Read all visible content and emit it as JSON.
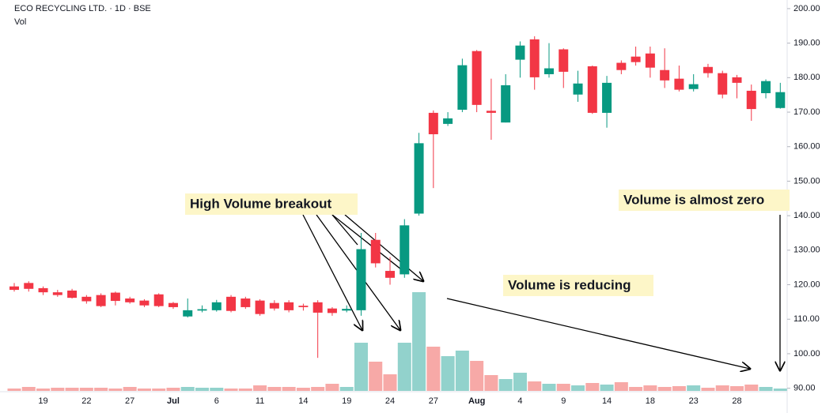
{
  "chart_data": {
    "type": "candlestick",
    "title": "ECO RECYCLING LTD. · 1D · BSE",
    "subtitle": "Vol",
    "categories": [
      null,
      null,
      "19",
      null,
      null,
      "22",
      null,
      null,
      "27",
      null,
      null,
      "Jul",
      null,
      null,
      "6",
      null,
      null,
      "11",
      null,
      null,
      "14",
      null,
      null,
      "19",
      null,
      null,
      "24",
      null,
      null,
      "27",
      null,
      null,
      "Aug",
      null,
      null,
      "4",
      null,
      null,
      "9",
      null,
      null,
      "14",
      null,
      null,
      "18",
      null,
      null,
      "23",
      null,
      null,
      "28",
      null,
      null,
      null
    ],
    "open": [
      119.5,
      120.5,
      119,
      117.8,
      118.3,
      116.5,
      117,
      117.7,
      116,
      115.4,
      117.2,
      114.7,
      110.8,
      112.5,
      112.6,
      116.5,
      116,
      115.4,
      114.7,
      114.9,
      113.9,
      114.9,
      113.1,
      112.5,
      112.6,
      133,
      124,
      123,
      140.6,
      169.8,
      166.6,
      170.7,
      187.7,
      170.4,
      167,
      185.2,
      191.1,
      181,
      188.2,
      175.1,
      183.3,
      169.8,
      184.3,
      186.1,
      187,
      182.2,
      179.7,
      176.7,
      183.1,
      181.3,
      180.1,
      176.2,
      175.5,
      171.2
    ],
    "high": [
      120.5,
      121,
      119.5,
      118.5,
      118.8,
      117,
      117.5,
      118,
      116.5,
      115.8,
      117.5,
      115,
      116,
      114,
      115.6,
      117,
      116.5,
      115.8,
      115.5,
      115.5,
      114.5,
      115.5,
      113.5,
      114,
      135,
      135,
      128,
      139,
      164,
      170.5,
      170,
      185.5,
      188,
      179.7,
      181,
      190.5,
      192,
      190,
      188.5,
      182,
      183.5,
      180.5,
      185,
      189,
      189,
      188.5,
      183.5,
      181,
      184,
      182,
      180.8,
      178,
      179.5,
      178.5
    ],
    "low": [
      118,
      118,
      117,
      116.5,
      116,
      114.5,
      113.5,
      114,
      114.5,
      113.5,
      113.5,
      113,
      110.5,
      112,
      112.2,
      112,
      113,
      111,
      112.5,
      112,
      112.5,
      98.8,
      111,
      112,
      111,
      125,
      120,
      122,
      140,
      148,
      166,
      170,
      170,
      162,
      167,
      180,
      176.5,
      180,
      177,
      173,
      169.5,
      165.5,
      181,
      183.5,
      180,
      177,
      176,
      176,
      180,
      174,
      174,
      167.5,
      174,
      171
    ],
    "close": [
      118.5,
      118.8,
      117.8,
      117,
      116.2,
      115.2,
      113.8,
      115.3,
      114.9,
      114,
      113.8,
      113.5,
      112.6,
      112.9,
      114.9,
      112.4,
      113.5,
      111.5,
      113.1,
      112.6,
      113.5,
      111.9,
      111.8,
      113,
      130.3,
      126.2,
      122,
      137.2,
      161,
      163.6,
      168.2,
      183.6,
      172.1,
      169.8,
      177.8,
      189.3,
      180.1,
      182.7,
      181.7,
      178.3,
      169.8,
      178.5,
      182.2,
      184.5,
      182.9,
      179.2,
      176.5,
      178.1,
      181.3,
      175.1,
      178.5,
      170.9,
      179,
      175.8
    ],
    "volume": [
      3,
      5,
      3,
      4,
      4,
      4,
      4,
      3,
      5,
      3,
      3,
      4,
      5,
      4,
      4,
      3,
      3,
      7,
      5,
      5,
      4,
      5,
      9,
      5,
      61,
      37,
      21,
      61,
      125,
      56,
      44,
      51,
      38,
      20,
      15,
      23,
      12,
      9,
      9,
      7,
      10,
      8,
      11,
      5,
      7,
      5,
      6,
      7,
      4,
      7,
      6,
      8,
      5,
      3
    ],
    "up_color": "#089981",
    "down_color": "#f23645",
    "volume_up_color": "#92d2cc",
    "volume_down_color": "#f7a9a7",
    "ylim": [
      89,
      202.5
    ],
    "yticks": [
      {
        "value": 90,
        "label": "90.00"
      },
      {
        "value": 100,
        "label": "100.00"
      },
      {
        "value": 110,
        "label": "110.00"
      },
      {
        "value": 120,
        "label": "120.00"
      },
      {
        "value": 130,
        "label": "130.00"
      },
      {
        "value": 140,
        "label": "140.00"
      },
      {
        "value": 150,
        "label": "150.00"
      },
      {
        "value": 160,
        "label": "160.00"
      },
      {
        "value": 170,
        "label": "170.00"
      },
      {
        "value": 180,
        "label": "180.00"
      },
      {
        "value": 190,
        "label": "190.00"
      },
      {
        "value": 200,
        "label": "200.00"
      }
    ],
    "annotations": [
      "High Volume breakout",
      "Volume is almost zero",
      "Volume is reducing"
    ]
  }
}
